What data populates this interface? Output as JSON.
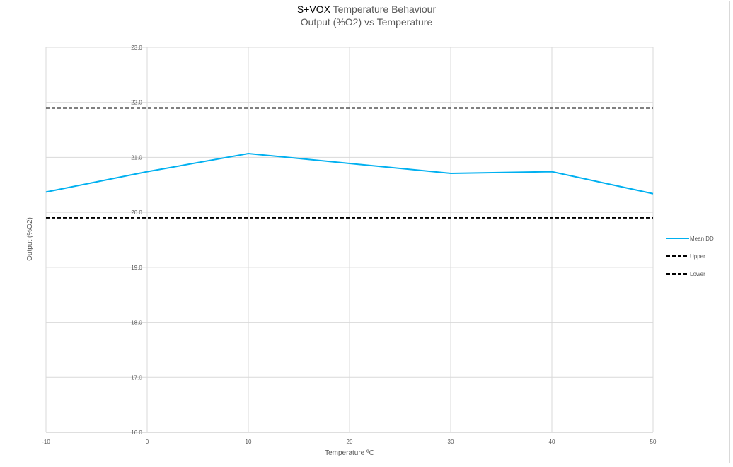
{
  "chart_data": {
    "type": "line",
    "title_brand": "S+VOX",
    "title": "Temperature Behaviour",
    "subtitle": "Output (%O2) vs Temperature",
    "xlabel": "Temperature ºC",
    "ylabel": "Output (%O2)",
    "x": [
      -10,
      0,
      10,
      20,
      30,
      40,
      50
    ],
    "x_tick_labels": [
      "-10",
      "0",
      "10",
      "20",
      "30",
      "40",
      "50"
    ],
    "y_tick_labels": [
      "16.0",
      "17.0",
      "18.0",
      "19.0",
      "20.0",
      "21.0",
      "22.0",
      "23.0"
    ],
    "xlim": [
      -10,
      50
    ],
    "ylim": [
      16.0,
      23.0
    ],
    "grid": true,
    "legend_position": "right",
    "series": [
      {
        "name": "Mean DD",
        "values": [
          20.37,
          20.74,
          21.07,
          20.89,
          20.71,
          20.74,
          20.34
        ],
        "color": "#00b0f0",
        "dash": "solid"
      },
      {
        "name": "Upper",
        "values": [
          21.9,
          21.9,
          21.9,
          21.9,
          21.9,
          21.9,
          21.9
        ],
        "color": "#000000",
        "dash": "dashed"
      },
      {
        "name": "Lower",
        "values": [
          19.9,
          19.9,
          19.9,
          19.9,
          19.9,
          19.9,
          19.9
        ],
        "color": "#000000",
        "dash": "dashed"
      }
    ]
  }
}
